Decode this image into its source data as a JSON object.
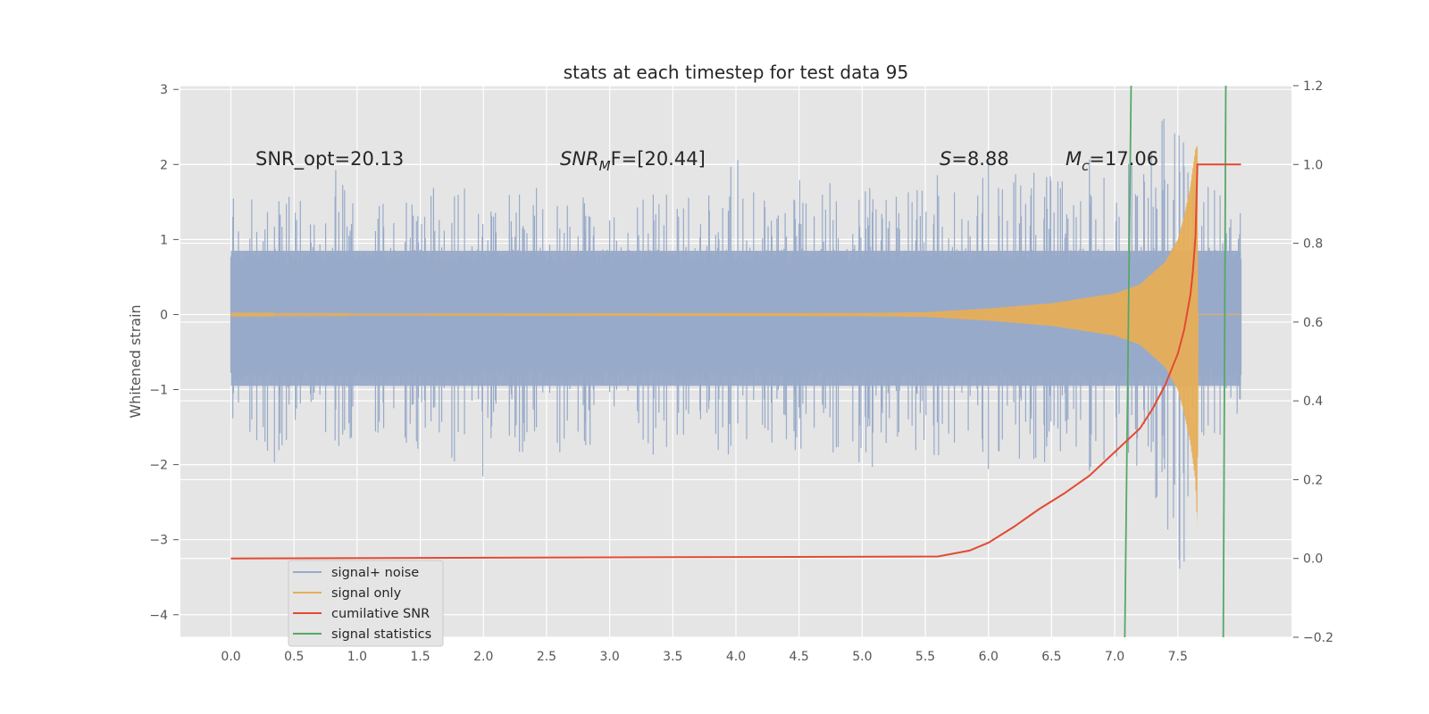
{
  "chart_data": {
    "type": "line",
    "title": "stats at each timestep for test data 95",
    "ylabel": "Whitened strain",
    "xlabel": "",
    "xlim": [
      -0.4,
      8.4
    ],
    "ylim": [
      -4.3,
      3.05
    ],
    "y2lim": [
      -0.2,
      1.2
    ],
    "x_ticks": [
      "0.0",
      "0.5",
      "1.0",
      "1.5",
      "2.0",
      "2.5",
      "3.0",
      "3.5",
      "4.0",
      "4.5",
      "5.0",
      "5.5",
      "6.0",
      "6.5",
      "7.0",
      "7.5"
    ],
    "y_ticks": [
      "3",
      "2",
      "1",
      "0",
      "−1",
      "−2",
      "−3",
      "−4"
    ],
    "y2_ticks": [
      "1.2",
      "1.0",
      "0.8",
      "0.6",
      "0.4",
      "0.2",
      "0.0",
      "−0.2"
    ],
    "grid": true,
    "legend_position": "bottom-left",
    "annotations": [
      {
        "text": "SNR_opt=20.13",
        "x": 0.2,
        "y": 2.0
      },
      {
        "symbol": "SNR",
        "sub": "M",
        "rest": "F=[20.44]",
        "x": 2.6,
        "y": 2.0
      },
      {
        "symbol": "S",
        "sub": "",
        "rest": "=8.88",
        "x": 5.6,
        "y": 2.0
      },
      {
        "symbol": "M",
        "sub": "c",
        "rest": "=17.06",
        "x": 6.6,
        "y": 2.0
      }
    ],
    "series": [
      {
        "name": "signal+ noise",
        "axis": "left",
        "color": "#98aac9",
        "x_range": [
          0.0,
          8.0
        ],
        "envelope_low": [
          -1.6,
          -2.0,
          -1.7,
          -1.9,
          -2.2,
          -1.8,
          -1.7,
          -2.0,
          -1.5,
          -1.6,
          -2.2,
          -1.8,
          -1.7,
          -2.0,
          -1.6,
          -1.8,
          -2.0,
          -1.7,
          -1.9,
          -1.8,
          -1.6,
          -1.7,
          -2.0,
          -1.9,
          -1.8,
          -2.2,
          -2.1,
          -1.7,
          -1.6,
          -2.3,
          -1.8,
          -1.7,
          -1.9,
          -1.8,
          -1.7,
          -1.9,
          -1.8,
          -1.9,
          -1.7,
          -1.8,
          -1.6,
          -1.9,
          -2.0,
          -1.8,
          -1.7,
          -2.1,
          -1.8,
          -1.7,
          -1.8,
          -1.9,
          -1.8,
          -2.0,
          -1.9,
          -1.8,
          -1.7,
          -1.8,
          -1.9,
          -1.7,
          -1.8,
          -1.9,
          -2.0,
          -1.8,
          -1.9,
          -2.45,
          -1.8,
          -1.9,
          -1.7,
          -1.8,
          -1.9,
          -1.8,
          -2.0,
          -1.8,
          -1.9,
          -1.7,
          -1.8,
          -2.55,
          -1.9,
          -1.8,
          -2.0,
          -1.9,
          -2.1,
          -1.9,
          -2.0,
          -1.8,
          -2.0,
          -2.1,
          -2.4,
          -2.2,
          -2.0,
          -2.1,
          -2.2,
          -2.4,
          -2.6,
          -3.2,
          -4.0,
          -2.2,
          -2.0,
          -1.8,
          -1.6,
          -1.4,
          -1.3
        ],
        "envelope_high": [
          1.7,
          1.5,
          1.6,
          1.5,
          1.4,
          1.7,
          1.6,
          1.8,
          1.5,
          1.6,
          2.6,
          1.8,
          1.7,
          1.6,
          1.5,
          1.6,
          1.7,
          1.5,
          1.6,
          1.5,
          1.7,
          1.6,
          2.1,
          1.8,
          1.6,
          1.7,
          1.5,
          1.6,
          1.7,
          1.6,
          2.2,
          1.7,
          1.6,
          1.8,
          1.7,
          1.6,
          1.5,
          1.7,
          1.6,
          1.8,
          1.6,
          1.7,
          1.6,
          1.8,
          1.7,
          1.6,
          1.5,
          1.6,
          1.7,
          1.6,
          2.45,
          1.8,
          1.6,
          1.7,
          1.6,
          1.5,
          1.9,
          1.7,
          1.6,
          1.8,
          1.7,
          1.6,
          1.8,
          1.7,
          1.9,
          1.6,
          1.7,
          1.8,
          1.7,
          1.6,
          2.0,
          1.8,
          1.7,
          1.9,
          1.8,
          2.1,
          1.7,
          1.8,
          1.9,
          2.0,
          1.8,
          2.0,
          1.9,
          1.8,
          2.0,
          2.2,
          1.9,
          2.0,
          2.3,
          2.1,
          2.5,
          2.2,
          2.6,
          2.7,
          2.6,
          2.2,
          1.9,
          1.7,
          1.6,
          1.5,
          1.4
        ]
      },
      {
        "name": "signal only",
        "axis": "left",
        "color": "#e5ae5a",
        "x_range": [
          0.0,
          8.0
        ],
        "amplitude_envelope": {
          "x": [
            0.0,
            5.0,
            5.5,
            6.0,
            6.5,
            7.0,
            7.2,
            7.4,
            7.5,
            7.55,
            7.6,
            7.64,
            7.655,
            7.66,
            8.0
          ],
          "high": [
            0.01,
            0.02,
            0.03,
            0.08,
            0.15,
            0.28,
            0.4,
            0.7,
            1.0,
            1.3,
            1.7,
            2.2,
            2.25,
            0.0,
            0.0
          ],
          "low": [
            -0.01,
            -0.02,
            -0.03,
            -0.08,
            -0.15,
            -0.28,
            -0.4,
            -0.7,
            -1.0,
            -1.3,
            -1.7,
            -2.2,
            -2.85,
            0.0,
            0.0
          ]
        }
      },
      {
        "name": "cumilative SNR",
        "axis": "right",
        "color": "#e24a33",
        "x": [
          0.0,
          5.6,
          5.85,
          6.0,
          6.2,
          6.4,
          6.6,
          6.8,
          7.0,
          7.2,
          7.3,
          7.4,
          7.5,
          7.55,
          7.6,
          7.62,
          7.64,
          7.655,
          8.0
        ],
        "y": [
          0.0,
          0.005,
          0.02,
          0.04,
          0.08,
          0.125,
          0.165,
          0.21,
          0.27,
          0.33,
          0.38,
          0.44,
          0.52,
          0.58,
          0.67,
          0.73,
          0.82,
          1.0,
          1.0
        ]
      },
      {
        "name": "signal statistics",
        "axis": "left",
        "color": "#55a868",
        "lines": [
          {
            "x": [
              7.08,
              7.13
            ],
            "y": [
              -4.3,
              3.05
            ]
          },
          {
            "x": [
              7.86,
              7.88
            ],
            "y": [
              -4.3,
              3.05
            ]
          }
        ]
      }
    ]
  }
}
